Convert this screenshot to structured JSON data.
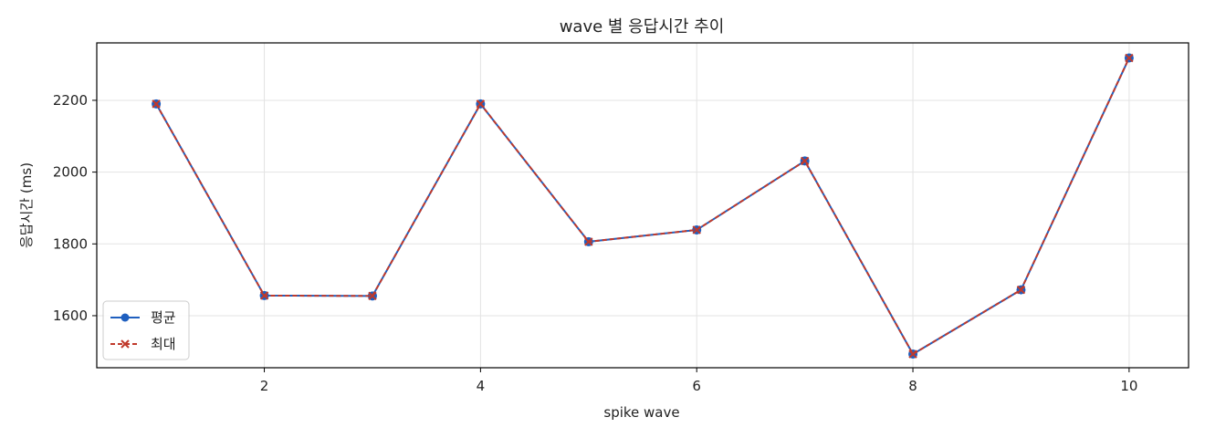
{
  "chart_data": {
    "type": "line",
    "title": "wave 별 응답시간 추이",
    "xlabel": "spike wave",
    "ylabel": "응답시간 (ms)",
    "x": [
      1,
      2,
      3,
      4,
      5,
      6,
      7,
      8,
      9,
      10
    ],
    "xlim": [
      0.45,
      10.55
    ],
    "ylim": [
      1455,
      2360
    ],
    "xticks": [
      2,
      4,
      6,
      8,
      10
    ],
    "yticks": [
      1600,
      1800,
      2000,
      2200
    ],
    "grid": true,
    "legend_position": "bottom-left",
    "series": [
      {
        "name": "평균",
        "color": "#1f5fbf",
        "marker": "circle",
        "linestyle": "solid",
        "values": [
          2190,
          1656,
          1655,
          2190,
          1806,
          1839,
          2031,
          1493,
          1672,
          2318
        ]
      },
      {
        "name": "최대",
        "color": "#c0392b",
        "marker": "x",
        "linestyle": "dashed",
        "values": [
          2190,
          1656,
          1655,
          2190,
          1806,
          1839,
          2031,
          1493,
          1672,
          2318
        ]
      }
    ]
  }
}
